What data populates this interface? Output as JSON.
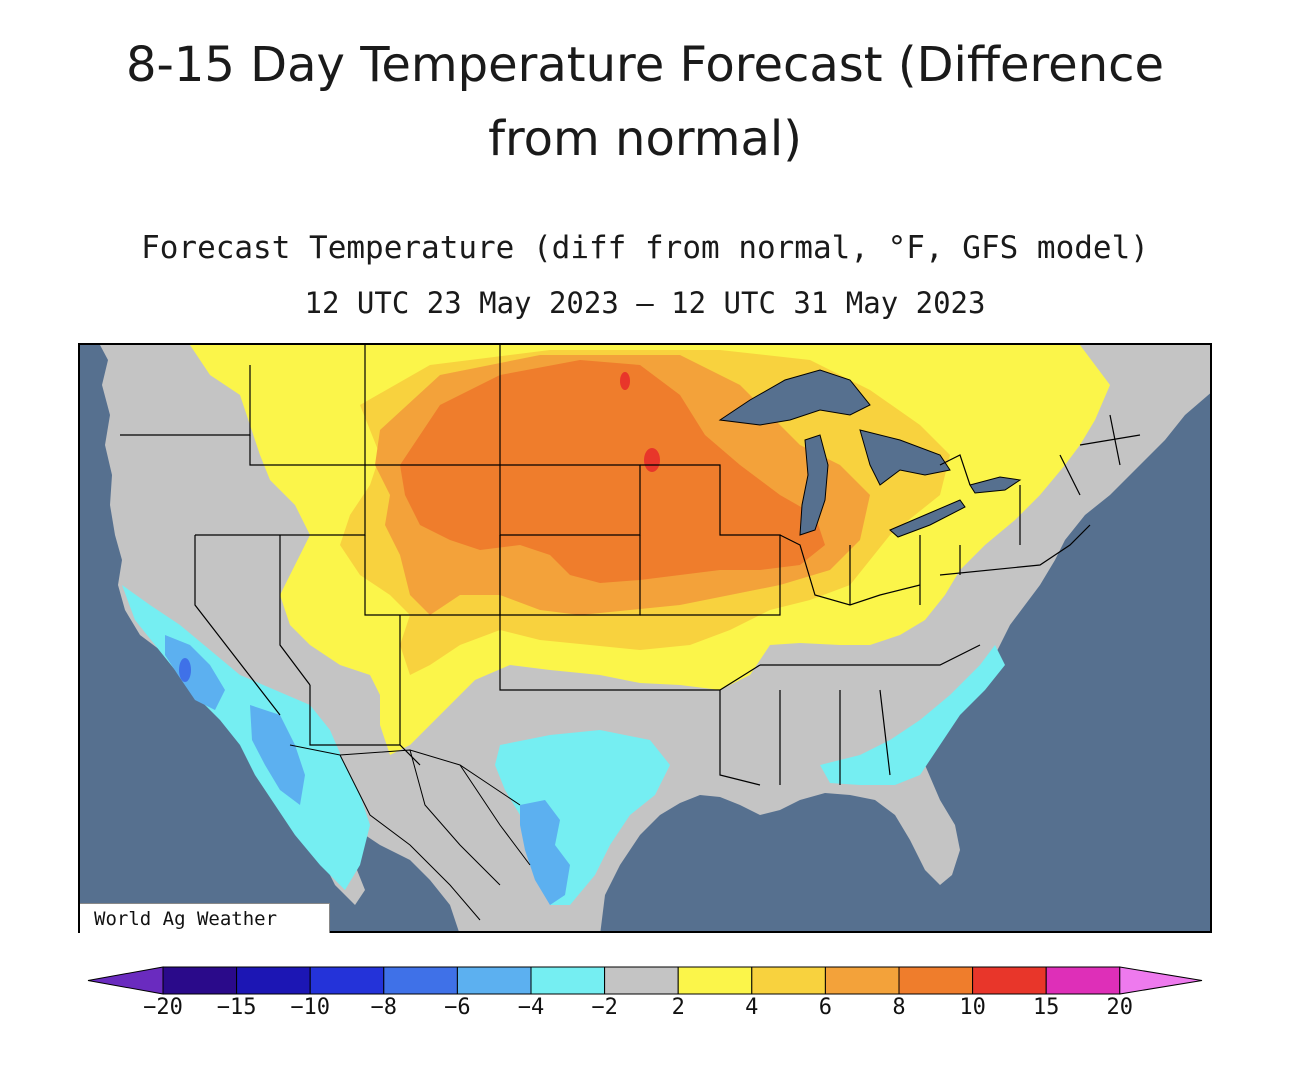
{
  "page": {
    "title_line1": "8-15 Day Temperature Forecast (Difference",
    "title_line2": "from normal)"
  },
  "map": {
    "title": "Forecast Temperature (diff from normal, °F, GFS model)",
    "period": "12 UTC 23 May 2023 – 12 UTC 31 May 2023",
    "credit": "World Ag Weather",
    "ocean_color": "#56708f",
    "land_color": "#c4c4c4",
    "region": "Contiguous United States"
  },
  "legend": {
    "ticks": [
      "−20",
      "−15",
      "−10",
      "−8",
      "−6",
      "−4",
      "−2",
      "2",
      "4",
      "6",
      "8",
      "10",
      "15",
      "20"
    ],
    "colors": [
      "#6a2bbf",
      "#2a0a8a",
      "#1c16b4",
      "#2433d9",
      "#3f71e8",
      "#5cb0f0",
      "#75eef2",
      "#c4c4c4",
      "#fbf54a",
      "#f8d23e",
      "#f3a23a",
      "#ef7d2c",
      "#e8362a",
      "#de2fb8",
      "#ee7aee"
    ]
  }
}
